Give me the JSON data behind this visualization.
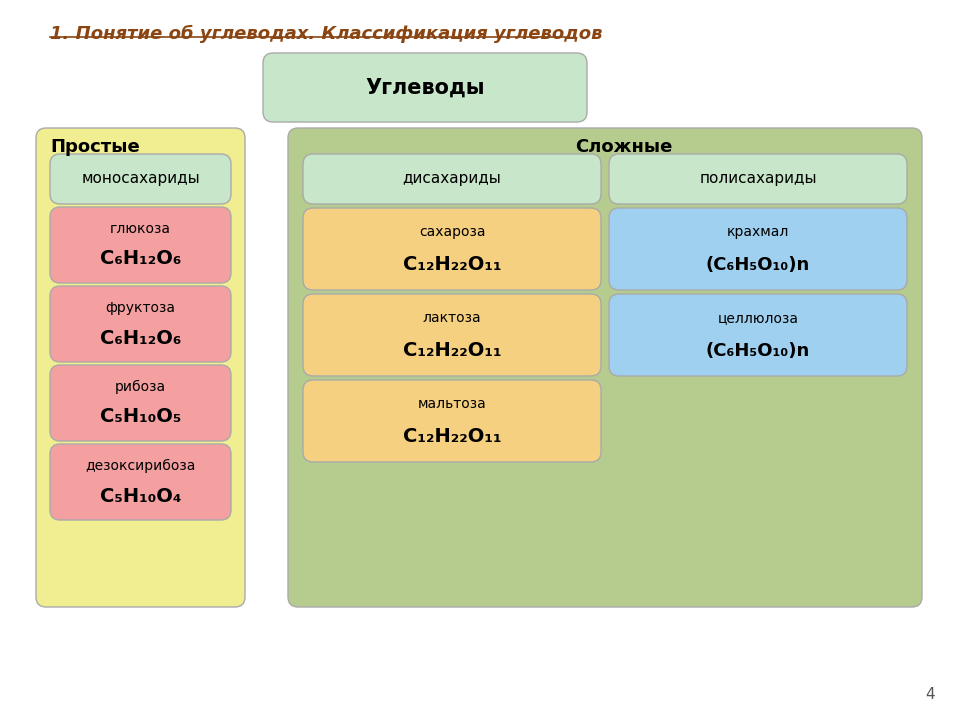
{
  "title": "1. Понятие об углеводах. Классификация углеводов",
  "title_color": "#8B4513",
  "title_fontsize": 13,
  "bg_color": "#ffffff",
  "uglevody_label": "Углеводы",
  "uglevody_box_color": "#c8e6c9",
  "prostye_label": "Простые",
  "slozhnye_label": "Сложные",
  "prostye_bg": "#f0ee90",
  "slozhnye_bg": "#b5cc8e",
  "mono_box_color": "#c8e6c9",
  "mono_label": "моносахариды",
  "simple_items": [
    {
      "name": "глюкоза",
      "formula": "C₆H₁₂O₆",
      "color": "#f4a0a0"
    },
    {
      "name": "фруктоза",
      "formula": "C₆H₁₂O₆",
      "color": "#f4a0a0"
    },
    {
      "name": "рибоза",
      "formula": "C₅H₁₀O₅",
      "color": "#f4a0a0"
    },
    {
      "name": "дезоксирибоза",
      "formula": "C₅H₁₀O₄",
      "color": "#f4a0a0"
    }
  ],
  "di_label": "дисахариды",
  "poly_label": "полисахариды",
  "di_box_color": "#c8e6c9",
  "poly_box_color": "#c8e6c9",
  "di_items": [
    {
      "name": "сахароза",
      "formula": "C₁₂H₂₂O₁₁",
      "color": "#f5d080"
    },
    {
      "name": "лактоза",
      "formula": "C₁₂H₂₂O₁₁",
      "color": "#f5d080"
    },
    {
      "name": "мальтоза",
      "formula": "C₁₂H₂₂O₁₁",
      "color": "#f5d080"
    }
  ],
  "poly_items": [
    {
      "name": "крахмал",
      "formula": "(C₆H₅O₁₀)n",
      "color": "#a0d0f0"
    },
    {
      "name": "целлюлоза",
      "formula": "(C₆H₅O₁₀)n",
      "color": "#a0d0f0"
    }
  ],
  "page_num": "4"
}
